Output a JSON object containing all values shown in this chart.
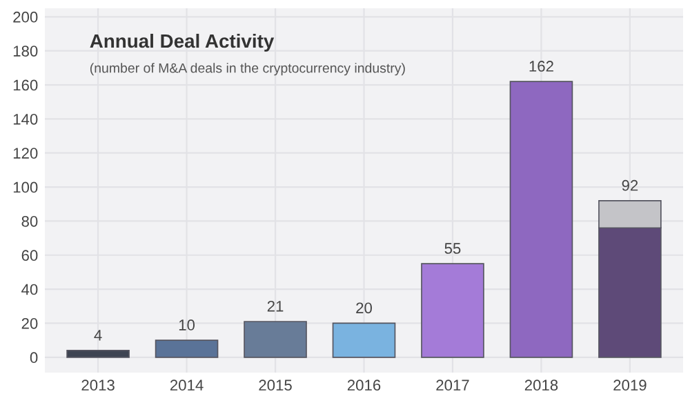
{
  "chart_data": {
    "type": "bar",
    "title": "Annual Deal Activity",
    "subtitle": "(number of M&A deals in the cryptocurrency industry)",
    "categories": [
      "2013",
      "2014",
      "2015",
      "2016",
      "2017",
      "2018",
      "2019"
    ],
    "stacked": true,
    "series": [
      {
        "colors": [
          "#3e4452",
          "#5a7398",
          "#687c98",
          "#7ab3e0",
          "#a47bd8",
          "#8e68c0",
          "#5e4a78"
        ],
        "values": [
          4,
          10,
          21,
          20,
          55,
          162,
          76
        ]
      },
      {
        "color": "#c4c4c8",
        "values": [
          null,
          null,
          null,
          null,
          null,
          null,
          16
        ]
      }
    ],
    "totals": [
      "4",
      "10",
      "21",
      "20",
      "55",
      "162",
      "92"
    ],
    "ylim": [
      -9,
      205
    ],
    "yticks": [
      0,
      20,
      40,
      60,
      80,
      100,
      120,
      140,
      160,
      180,
      200
    ],
    "grid": true,
    "legend": false
  }
}
